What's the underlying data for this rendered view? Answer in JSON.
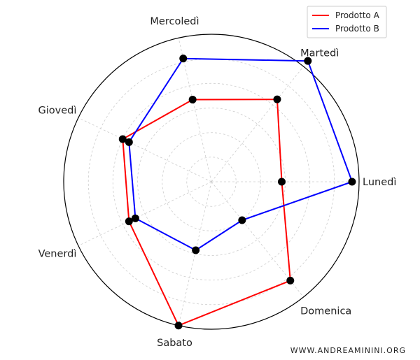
{
  "chart_data": {
    "type": "radar",
    "categories": [
      "Lunedì",
      "Martedì",
      "Mercoledì",
      "Giovedì",
      "Venerdì",
      "Sabato",
      "Domenica"
    ],
    "series": [
      {
        "name": "Prodotto A",
        "color": "#ff0000",
        "values": [
          10,
          15,
          12,
          14,
          13,
          21,
          18
        ]
      },
      {
        "name": "Prodotto B",
        "color": "#0000ff",
        "values": [
          20,
          22,
          18,
          13,
          12,
          10,
          7
        ]
      }
    ],
    "rlim": [
      0,
      21
    ],
    "grid": true,
    "legend": "top-right",
    "marker_color": "#000000"
  },
  "watermark": "WWW.ANDREAMININI.ORG"
}
